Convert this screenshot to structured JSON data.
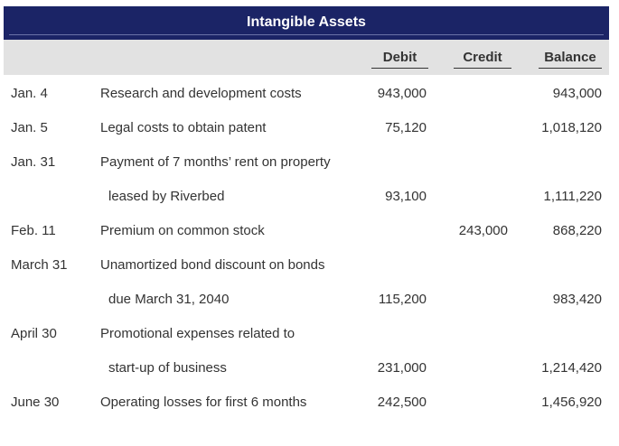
{
  "title": "Intangible Assets",
  "columns": {
    "debit": "Debit",
    "credit": "Credit",
    "balance": "Balance"
  },
  "rows": [
    {
      "date": "Jan. 4",
      "desc": "Research and development costs",
      "debit": "943,000",
      "credit": "",
      "balance": "943,000"
    },
    {
      "date": "Jan. 5",
      "desc": "Legal costs to obtain patent",
      "debit": "75,120",
      "credit": "",
      "balance": "1,018,120"
    },
    {
      "date": "Jan. 31",
      "desc": "Payment of 7 months’ rent on property",
      "debit": "",
      "credit": "",
      "balance": ""
    },
    {
      "date": "",
      "desc": "leased by Riverbed",
      "debit": "93,100",
      "credit": "",
      "balance": "1,111,220"
    },
    {
      "date": "Feb. 11",
      "desc": "Premium on common stock",
      "debit": "",
      "credit": "243,000",
      "balance": "868,220"
    },
    {
      "date": "March 31",
      "desc": "Unamortized bond discount on bonds",
      "debit": "",
      "credit": "",
      "balance": ""
    },
    {
      "date": "",
      "desc": "due March 31, 2040",
      "debit": "115,200",
      "credit": "",
      "balance": "983,420"
    },
    {
      "date": "April 30",
      "desc": "Promotional expenses related to",
      "debit": "",
      "credit": "",
      "balance": ""
    },
    {
      "date": "",
      "desc": "start-up of business",
      "debit": "231,000",
      "credit": "",
      "balance": "1,214,420"
    },
    {
      "date": "June 30",
      "desc": "Operating losses for first 6 months",
      "debit": "242,500",
      "credit": "",
      "balance": "1,456,920"
    }
  ]
}
